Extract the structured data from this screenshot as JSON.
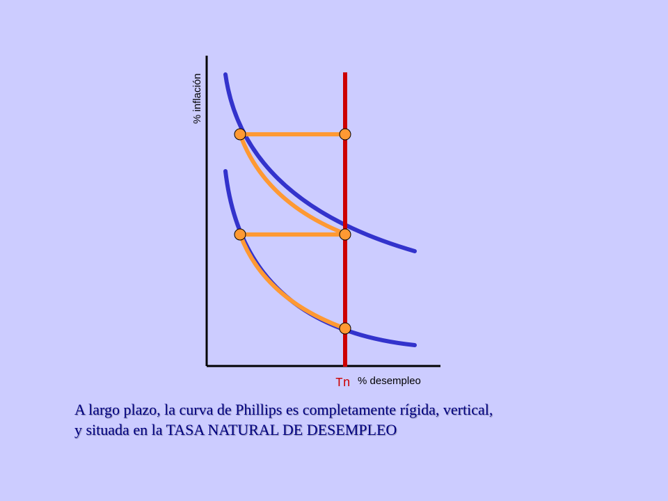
{
  "diagram": {
    "y_axis_label": "% inflación",
    "x_axis_label": "% desempleo",
    "natural_rate_label": "Tn",
    "colors": {
      "background": "#ccccff",
      "phillips_curve": "#3333cc",
      "path": "#ff9933",
      "long_run_line": "#cc0000",
      "axis": "#000000",
      "caption": "#000080"
    }
  },
  "caption": {
    "line1": "A largo plazo, la curva de Phillips es completamente rígida, vertical,",
    "line2": "y situada en la TASA NATURAL DE DESEMPLEO"
  }
}
